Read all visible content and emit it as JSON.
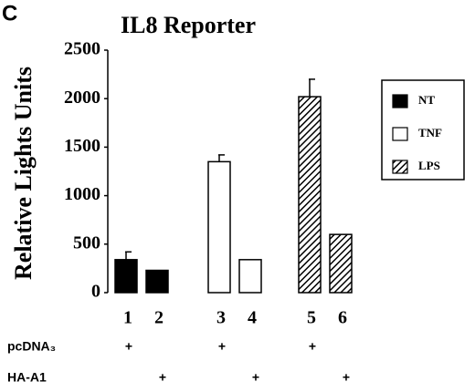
{
  "chart_data": {
    "type": "bar",
    "panel": "C",
    "title": "IL8 Reporter",
    "y_label": "Relative Lights Units",
    "categories": [
      "1",
      "2",
      "3",
      "4",
      "5",
      "6"
    ],
    "series": [
      {
        "name": "NT",
        "color": "#000000",
        "pattern": "solid",
        "values": [
          340,
          230,
          null,
          null,
          null,
          null
        ],
        "errors": [
          80,
          null,
          null,
          null,
          null,
          null
        ]
      },
      {
        "name": "TNF",
        "color": "#000000",
        "pattern": "none",
        "values": [
          null,
          null,
          1350,
          340,
          null,
          null
        ],
        "errors": [
          null,
          null,
          70,
          null,
          null,
          null
        ]
      },
      {
        "name": "LPS",
        "color": "#000000",
        "pattern": "hatch",
        "values": [
          null,
          null,
          null,
          null,
          2020,
          600
        ],
        "errors": [
          null,
          null,
          null,
          null,
          180,
          null
        ]
      }
    ],
    "ylim": [
      0,
      2500
    ],
    "yticks": [
      0,
      500,
      1000,
      1500,
      2000,
      2500
    ],
    "legend": "right",
    "rows": [
      {
        "label": "pcDNA₃",
        "marks": [
          "+",
          null,
          "+",
          null,
          "+",
          null
        ]
      },
      {
        "label": "HA-A1",
        "marks": [
          null,
          "+",
          null,
          "+",
          null,
          "+"
        ]
      }
    ]
  }
}
